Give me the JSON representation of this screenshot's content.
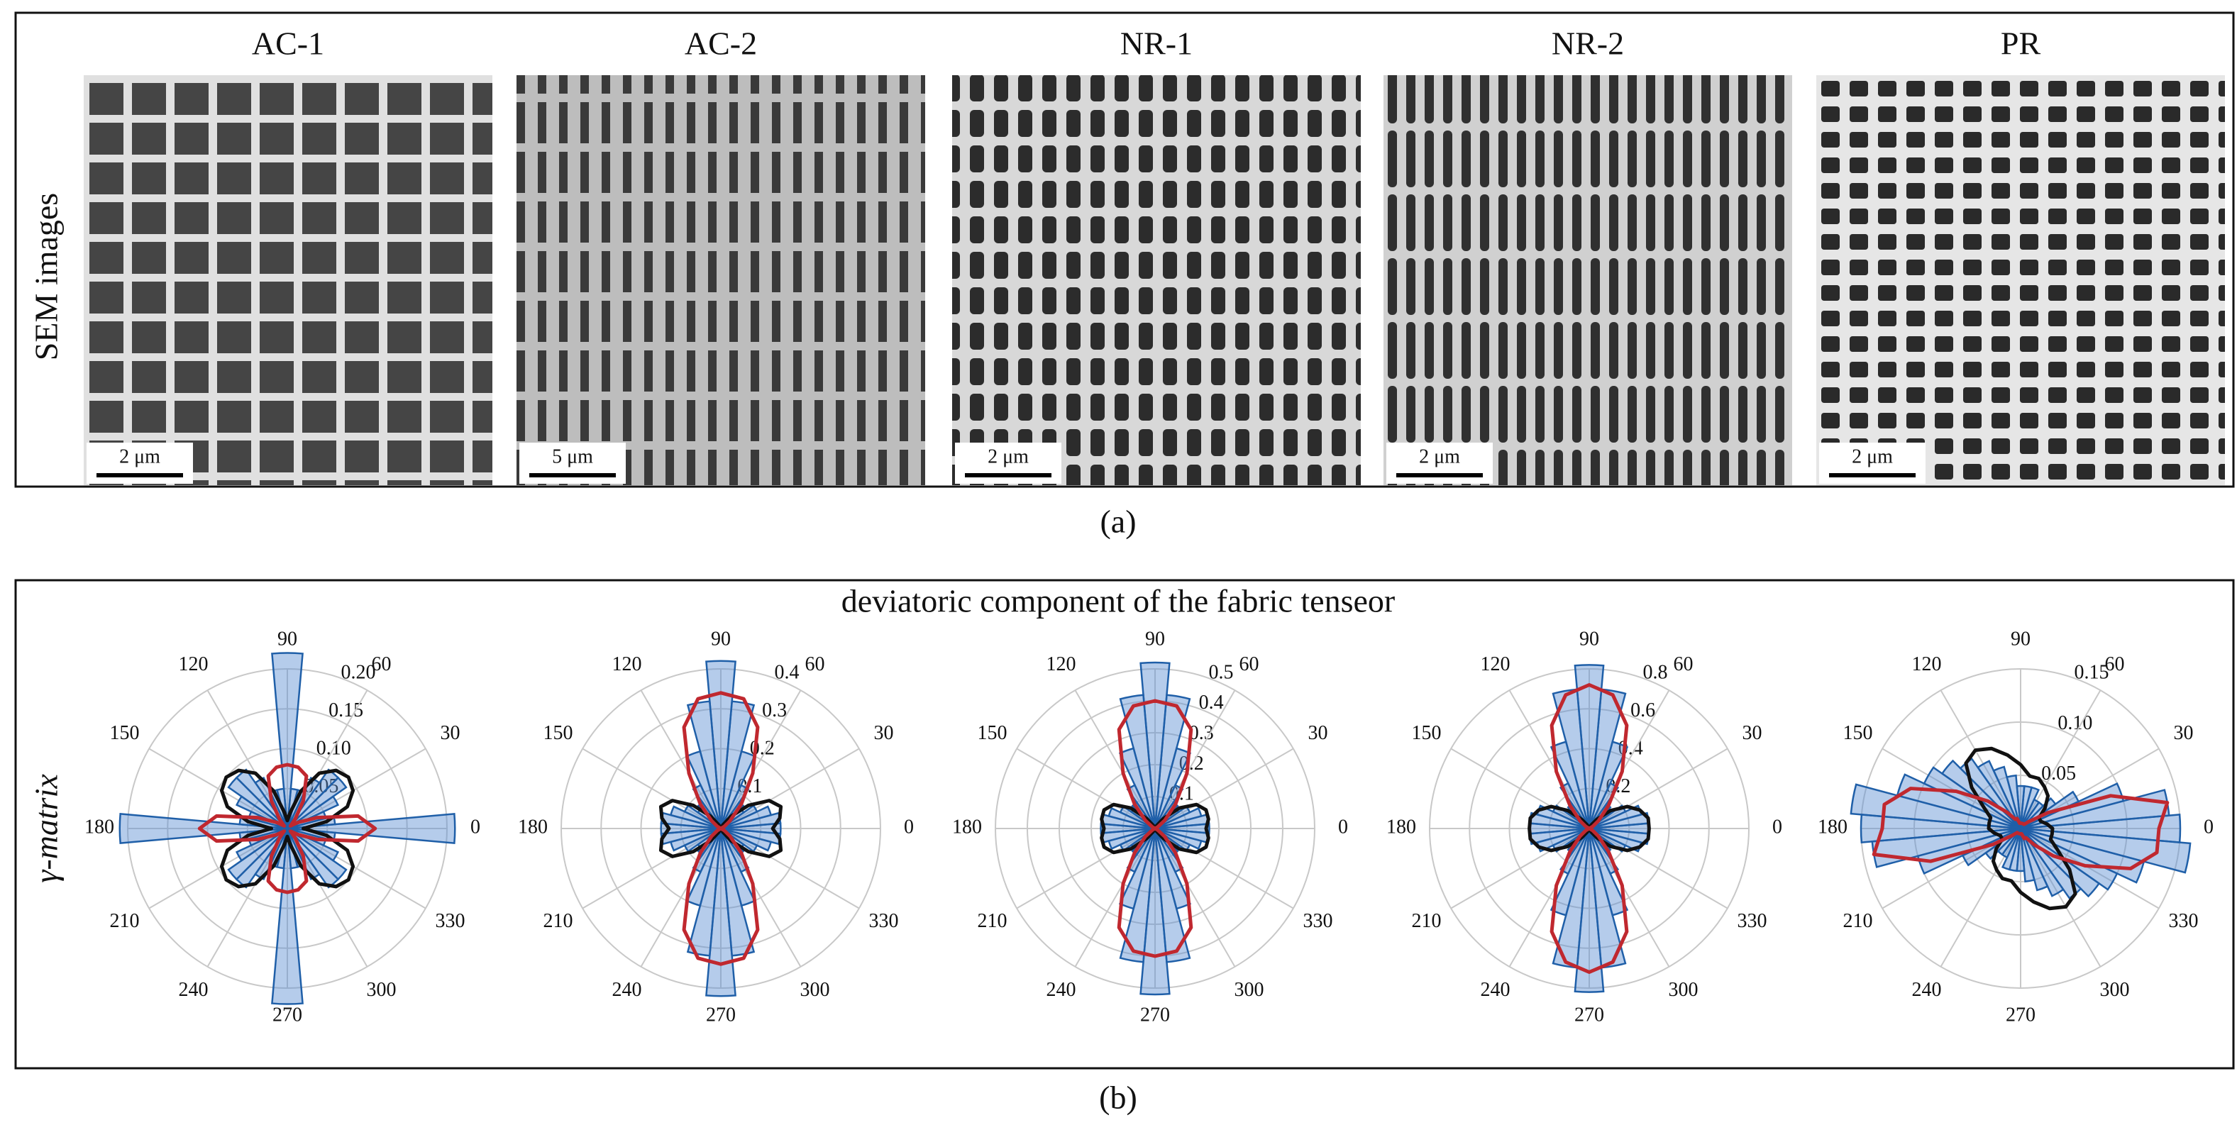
{
  "panel_a": {
    "row_label": "SEM images",
    "caption": "(a)",
    "images": [
      {
        "title": "AC-1",
        "scale_bar": "2 μm"
      },
      {
        "title": "AC-2",
        "scale_bar": "5 μm"
      },
      {
        "title": "NR-1",
        "scale_bar": "2 μm"
      },
      {
        "title": "NR-2",
        "scale_bar": "2 μm"
      },
      {
        "title": "PR",
        "scale_bar": "2 μm"
      }
    ]
  },
  "panel_b": {
    "title": "deviatoric component of the fabric tenseor",
    "row_label": "γ-matrix",
    "caption": "(b)"
  },
  "chart_data": [
    {
      "type": "rose",
      "x": [
        0,
        10,
        20,
        30,
        40,
        50,
        60,
        70,
        80,
        90,
        100,
        110,
        120,
        130,
        140,
        150,
        160,
        170
      ],
      "thetaticks": [
        0,
        30,
        60,
        90,
        120,
        150,
        180,
        210,
        240,
        270,
        300,
        330
      ],
      "rlim": [
        0,
        0.2
      ],
      "rticks": [
        0.05,
        {
          "value": 0.1,
          "label": "0.10"
        },
        0.15,
        {
          "value": 0.2,
          "label": "0.20"
        }
      ],
      "series": [
        {
          "style": "bars",
          "color": "#1f5fa8",
          "values": [
            0.21,
            0.06,
            0.05,
            0.07,
            0.09,
            0.09,
            0.07,
            0.05,
            0.05,
            0.22,
            0.05,
            0.05,
            0.07,
            0.09,
            0.09,
            0.07,
            0.05,
            0.06
          ]
        },
        {
          "style": "line",
          "color": "#111111",
          "values": [
            0.02,
            0.05,
            0.08,
            0.095,
            0.1,
            0.095,
            0.08,
            0.05,
            0.02,
            0.01,
            0.02,
            0.05,
            0.08,
            0.095,
            0.1,
            0.095,
            0.08,
            0.05
          ]
        },
        {
          "style": "line",
          "color": "#c0282f",
          "values": [
            0.11,
            0.09,
            0.04,
            0.015,
            0.005,
            0.015,
            0.04,
            0.07,
            0.078,
            0.08,
            0.078,
            0.07,
            0.04,
            0.015,
            0.005,
            0.015,
            0.04,
            0.09
          ]
        }
      ]
    },
    {
      "type": "rose",
      "x": [
        0,
        10,
        20,
        30,
        40,
        50,
        60,
        70,
        80,
        90,
        100,
        110,
        120,
        130,
        140,
        150,
        160,
        170
      ],
      "thetaticks": [
        0,
        30,
        60,
        90,
        120,
        150,
        180,
        210,
        240,
        270,
        300,
        330
      ],
      "rlim": [
        0,
        0.4
      ],
      "rticks": [
        0.1,
        0.2,
        0.3,
        0.4
      ],
      "series": [
        {
          "style": "bars",
          "color": "#1f5fa8",
          "values": [
            0.15,
            0.15,
            0.13,
            0.1,
            0.07,
            0.08,
            0.12,
            0.2,
            0.32,
            0.42,
            0.32,
            0.2,
            0.12,
            0.08,
            0.07,
            0.1,
            0.13,
            0.15
          ]
        },
        {
          "style": "line",
          "color": "#111111",
          "values": [
            0.13,
            0.15,
            0.16,
            0.14,
            0.09,
            0.04,
            0.01,
            0,
            0,
            0,
            0,
            0,
            0.01,
            0.04,
            0.09,
            0.14,
            0.16,
            0.15
          ]
        },
        {
          "style": "line",
          "color": "#c0282f",
          "values": [
            0,
            0,
            0,
            0.01,
            0.03,
            0.08,
            0.16,
            0.27,
            0.33,
            0.34,
            0.33,
            0.27,
            0.16,
            0.08,
            0.03,
            0.01,
            0,
            0
          ]
        }
      ]
    },
    {
      "type": "rose",
      "x": [
        0,
        10,
        20,
        30,
        40,
        50,
        60,
        70,
        80,
        90,
        100,
        110,
        120,
        130,
        140,
        150,
        160,
        170
      ],
      "thetaticks": [
        0,
        30,
        60,
        90,
        120,
        150,
        180,
        210,
        240,
        270,
        300,
        330
      ],
      "rlim": [
        0,
        0.5
      ],
      "rticks": [
        0.1,
        0.2,
        0.3,
        0.4,
        0.5
      ],
      "series": [
        {
          "style": "bars",
          "color": "#1f5fa8",
          "values": [
            0.17,
            0.17,
            0.15,
            0.12,
            0.09,
            0.1,
            0.15,
            0.26,
            0.42,
            0.52,
            0.42,
            0.26,
            0.15,
            0.1,
            0.09,
            0.12,
            0.15,
            0.17
          ]
        },
        {
          "style": "line",
          "color": "#111111",
          "values": [
            0.16,
            0.17,
            0.17,
            0.15,
            0.1,
            0.04,
            0.01,
            0,
            0,
            0,
            0,
            0,
            0.01,
            0.04,
            0.1,
            0.15,
            0.17,
            0.17
          ]
        },
        {
          "style": "line",
          "color": "#c0282f",
          "values": [
            0,
            0,
            0,
            0.01,
            0.04,
            0.1,
            0.2,
            0.33,
            0.39,
            0.4,
            0.39,
            0.33,
            0.2,
            0.1,
            0.04,
            0.01,
            0,
            0
          ]
        }
      ]
    },
    {
      "type": "rose",
      "x": [
        0,
        10,
        20,
        30,
        40,
        50,
        60,
        70,
        80,
        90,
        100,
        110,
        120,
        130,
        140,
        150,
        160,
        170
      ],
      "thetaticks": [
        0,
        30,
        60,
        90,
        120,
        150,
        180,
        210,
        240,
        270,
        300,
        330
      ],
      "rlim": [
        0,
        0.8
      ],
      "rticks": [
        0.2,
        0.4,
        0.6,
        0.8
      ],
      "series": [
        {
          "style": "bars",
          "color": "#1f5fa8",
          "values": [
            0.3,
            0.3,
            0.27,
            0.2,
            0.14,
            0.15,
            0.25,
            0.45,
            0.7,
            0.82,
            0.7,
            0.45,
            0.25,
            0.15,
            0.14,
            0.2,
            0.27,
            0.3
          ]
        },
        {
          "style": "line",
          "color": "#111111",
          "values": [
            0.3,
            0.3,
            0.27,
            0.22,
            0.14,
            0.06,
            0.02,
            0,
            0,
            0,
            0,
            0,
            0.02,
            0.06,
            0.14,
            0.22,
            0.27,
            0.3
          ]
        },
        {
          "style": "line",
          "color": "#c0282f",
          "values": [
            0,
            0,
            0,
            0.02,
            0.06,
            0.15,
            0.33,
            0.55,
            0.68,
            0.72,
            0.68,
            0.55,
            0.33,
            0.15,
            0.06,
            0.02,
            0,
            0
          ]
        }
      ]
    },
    {
      "type": "rose",
      "x": [
        0,
        10,
        20,
        30,
        40,
        50,
        60,
        70,
        80,
        90,
        100,
        110,
        120,
        130,
        140,
        150,
        160,
        170
      ],
      "thetaticks": [
        0,
        30,
        60,
        90,
        120,
        150,
        180,
        210,
        240,
        270,
        300,
        330
      ],
      "rlim": [
        0,
        0.15
      ],
      "rticks": [
        0.05,
        {
          "value": 0.1,
          "label": "0.10"
        },
        0.15
      ],
      "series": [
        {
          "style": "bars",
          "color": "#1f5fa8",
          "values": [
            0.15,
            0.14,
            0.1,
            0.06,
            0.04,
            0.03,
            0.03,
            0.04,
            0.04,
            0.04,
            0.05,
            0.06,
            0.07,
            0.08,
            0.09,
            0.1,
            0.12,
            0.16
          ]
        },
        {
          "style": "line",
          "color": "#111111",
          "values": [
            0.03,
            0.025,
            0.02,
            0.02,
            0.03,
            0.04,
            0.045,
            0.05,
            0.05,
            0.06,
            0.07,
            0.08,
            0.085,
            0.08,
            0.06,
            0.04,
            0.03,
            0.03
          ]
        },
        {
          "style": "line",
          "color": "#c0282f",
          "values": [
            0.13,
            0.14,
            0.09,
            0.03,
            0.01,
            0.005,
            0.005,
            0.005,
            0.005,
            0.005,
            0.005,
            0.01,
            0.01,
            0.02,
            0.04,
            0.07,
            0.11,
            0.13
          ]
        }
      ]
    }
  ]
}
